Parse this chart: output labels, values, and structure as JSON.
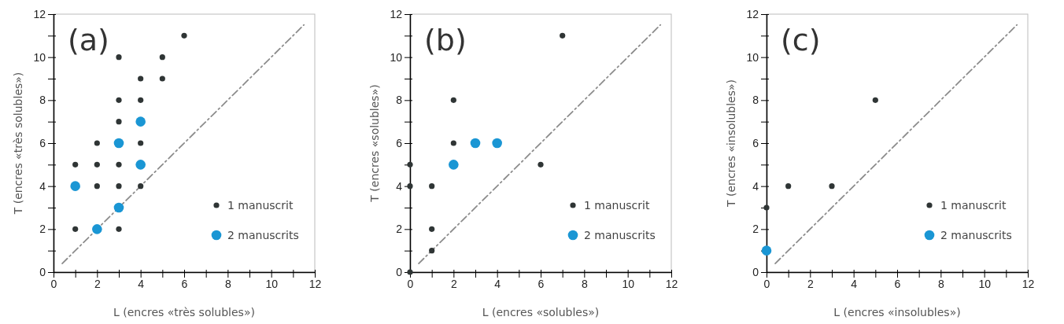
{
  "chart_data": [
    {
      "type": "scatter",
      "annotations": [
        "(a)"
      ],
      "xlabel": "L (encres «très solubles»)",
      "ylabel": "T (encres «très solubles»)",
      "xlim": [
        0,
        12
      ],
      "ylim": [
        0,
        12
      ],
      "xticks": [
        0,
        {
          "value": 1,
          "label": null
        },
        2,
        {
          "value": 3,
          "label": null
        },
        4,
        {
          "value": 5,
          "label": null
        },
        6,
        {
          "value": 7,
          "label": null
        },
        8,
        {
          "value": 9,
          "label": null
        },
        10,
        {
          "value": 11,
          "label": null
        },
        12
      ],
      "yticks": [
        0,
        {
          "value": 1,
          "label": null
        },
        2,
        {
          "value": 3,
          "label": null
        },
        4,
        {
          "value": 5,
          "label": null
        },
        6,
        {
          "value": 7,
          "label": null
        },
        8,
        {
          "value": 9,
          "label": null
        },
        10,
        {
          "value": 11,
          "label": null
        },
        12
      ],
      "legend": "bottom right",
      "grid": false,
      "series": [
        {
          "type": "line",
          "color": "#8c8c8c",
          "line_style": "dashed",
          "x": [
            0.4,
            11.5
          ],
          "values": [
            0.4,
            11.5
          ]
        },
        {
          "name": "1 manuscrit",
          "color": "#2f3535",
          "marker": "circle",
          "x": [
            1,
            1,
            2,
            2,
            2,
            3,
            3,
            3,
            3,
            3,
            3,
            4,
            4,
            4,
            4,
            5,
            5,
            6
          ],
          "values": [
            5,
            2,
            6,
            5,
            4,
            10,
            8,
            7,
            5,
            4,
            2,
            9,
            8,
            6,
            4,
            10,
            9,
            11
          ]
        },
        {
          "name": "2 manuscrits",
          "color": "#1a96d4",
          "marker": "circle",
          "x": [
            1,
            2,
            3,
            3,
            4,
            4
          ],
          "values": [
            4,
            2,
            6,
            3,
            7,
            5
          ]
        }
      ]
    },
    {
      "type": "scatter",
      "annotations": [
        "(b)"
      ],
      "xlabel": "L (encres «solubles»)",
      "ylabel": "T (encres «solubles»)",
      "xlim": [
        0,
        12
      ],
      "ylim": [
        0,
        12
      ],
      "xticks": [
        0,
        {
          "value": 1,
          "label": null
        },
        2,
        {
          "value": 3,
          "label": null
        },
        4,
        {
          "value": 5,
          "label": null
        },
        6,
        {
          "value": 7,
          "label": null
        },
        8,
        {
          "value": 9,
          "label": null
        },
        10,
        {
          "value": 11,
          "label": null
        },
        12
      ],
      "yticks": [
        0,
        {
          "value": 1,
          "label": null
        },
        2,
        {
          "value": 3,
          "label": null
        },
        4,
        {
          "value": 5,
          "label": null
        },
        6,
        {
          "value": 7,
          "label": null
        },
        8,
        {
          "value": 9,
          "label": null
        },
        10,
        {
          "value": 11,
          "label": null
        },
        12
      ],
      "legend": "bottom right",
      "grid": false,
      "series": [
        {
          "type": "line",
          "color": "#8c8c8c",
          "line_style": "dashed",
          "x": [
            0.4,
            11.5
          ],
          "values": [
            0.4,
            11.5
          ]
        },
        {
          "name": "1 manuscrit",
          "color": "#2f3535",
          "marker": "circle",
          "x": [
            0,
            0,
            0,
            1,
            1,
            1,
            2,
            2,
            6,
            7
          ],
          "values": [
            5,
            4,
            0,
            4,
            2,
            1,
            8,
            6,
            5,
            11
          ]
        },
        {
          "name": "2 manuscrits",
          "color": "#1a96d4",
          "marker": "circle",
          "x": [
            2,
            3,
            4
          ],
          "values": [
            5,
            6,
            6
          ]
        }
      ]
    },
    {
      "type": "scatter",
      "annotations": [
        "(c)"
      ],
      "xlabel": "L (encres «insolubles»)",
      "ylabel": "T (encres «insolubles»)",
      "xlim": [
        0,
        12
      ],
      "ylim": [
        0,
        12
      ],
      "xticks": [
        0,
        {
          "value": 1,
          "label": null
        },
        2,
        {
          "value": 3,
          "label": null
        },
        4,
        {
          "value": 5,
          "label": null
        },
        6,
        {
          "value": 7,
          "label": null
        },
        8,
        {
          "value": 9,
          "label": null
        },
        10,
        {
          "value": 11,
          "label": null
        },
        12
      ],
      "yticks": [
        0,
        {
          "value": 1,
          "label": null
        },
        2,
        {
          "value": 3,
          "label": null
        },
        4,
        {
          "value": 5,
          "label": null
        },
        6,
        {
          "value": 7,
          "label": null
        },
        8,
        {
          "value": 9,
          "label": null
        },
        10,
        {
          "value": 11,
          "label": null
        },
        12
      ],
      "legend": "bottom right",
      "grid": false,
      "series": [
        {
          "type": "line",
          "color": "#8c8c8c",
          "line_style": "dashed",
          "x": [
            0.4,
            11.5
          ],
          "values": [
            0.4,
            11.5
          ]
        },
        {
          "name": "1 manuscrit",
          "color": "#2f3535",
          "marker": "circle",
          "x": [
            0,
            1,
            3,
            5
          ],
          "values": [
            3,
            4,
            4,
            8
          ]
        },
        {
          "name": "2 manuscrits",
          "color": "#1a96d4",
          "marker": "circle",
          "x": [
            0
          ],
          "values": [
            1
          ]
        }
      ]
    }
  ]
}
